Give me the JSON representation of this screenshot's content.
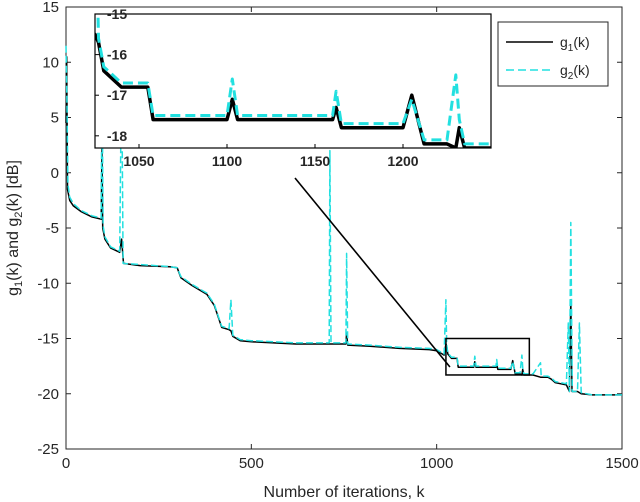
{
  "chart_data": {
    "type": "line",
    "xlabel": "Number of iterations, k",
    "ylabel": {
      "g1": "g",
      "s1": "1",
      "m1": "(k) and g",
      "s2": "2",
      "end": "(k) [dB]"
    },
    "xlim": [
      0,
      1500
    ],
    "ylim": [
      -25,
      15
    ],
    "x_ticks": [
      "0",
      "500",
      "1000",
      "1500"
    ],
    "y_ticks": [
      "15",
      "10",
      "5",
      "0",
      "-5",
      "-10",
      "-15",
      "-20",
      "-25"
    ],
    "legend": {
      "placement": "top-right",
      "entries": [
        {
          "base": "g",
          "sub": "1",
          "end": "(k)",
          "color": "#000000",
          "style": "solid"
        },
        {
          "base": "g",
          "sub": "2",
          "end": "(k)",
          "color": "#22e0e0",
          "style": "dashed"
        }
      ]
    },
    "zoom_box": {
      "x": [
        1025,
        1250
      ],
      "y": [
        -18.3,
        -15
      ]
    },
    "series": [
      {
        "key": "g1",
        "color": "#000000",
        "points": [
          [
            0,
            4.5
          ],
          [
            2,
            10.5
          ],
          [
            4,
            -1.5
          ],
          [
            10,
            -2.5
          ],
          [
            20,
            -3
          ],
          [
            40,
            -3.5
          ],
          [
            70,
            -4
          ],
          [
            95,
            -4.2
          ],
          [
            97,
            2.5
          ],
          [
            99,
            -5
          ],
          [
            105,
            -6
          ],
          [
            120,
            -6.8
          ],
          [
            145,
            -7.2
          ],
          [
            150,
            -6
          ],
          [
            155,
            -8.2
          ],
          [
            200,
            -8.4
          ],
          [
            280,
            -8.5
          ],
          [
            300,
            -8.6
          ],
          [
            310,
            -9.5
          ],
          [
            340,
            -10.2
          ],
          [
            380,
            -11
          ],
          [
            400,
            -12
          ],
          [
            410,
            -13
          ],
          [
            420,
            -14
          ],
          [
            440,
            -14.2
          ],
          [
            445,
            -14.3
          ],
          [
            450,
            -14.8
          ],
          [
            470,
            -15.2
          ],
          [
            500,
            -15.3
          ],
          [
            560,
            -15.4
          ],
          [
            620,
            -15.5
          ],
          [
            710,
            -15.5
          ],
          [
            712,
            -15.5
          ],
          [
            715,
            -15.5
          ],
          [
            755,
            -15.5
          ],
          [
            757,
            -14.5
          ],
          [
            760,
            -15.6
          ],
          [
            820,
            -15.7
          ],
          [
            900,
            -15.9
          ],
          [
            980,
            -16
          ],
          [
            1000,
            -16.1
          ],
          [
            1020,
            -16.5
          ],
          [
            1025,
            -15.5
          ],
          [
            1027,
            -15.7
          ],
          [
            1030,
            -16.4
          ],
          [
            1040,
            -16.8
          ],
          [
            1055,
            -16.8
          ],
          [
            1058,
            -17.6
          ],
          [
            1100,
            -17.6
          ],
          [
            1103,
            -17.1
          ],
          [
            1106,
            -17.6
          ],
          [
            1150,
            -17.6
          ],
          [
            1160,
            -17.6
          ],
          [
            1162,
            -17.3
          ],
          [
            1165,
            -17.8
          ],
          [
            1195,
            -17.8
          ],
          [
            1200,
            -17.8
          ],
          [
            1205,
            -17.0
          ],
          [
            1212,
            -18.2
          ],
          [
            1225,
            -18.2
          ],
          [
            1230,
            -18.3
          ],
          [
            1232,
            -17.8
          ],
          [
            1235,
            -18.3
          ],
          [
            1260,
            -18.3
          ],
          [
            1280,
            -18.5
          ],
          [
            1300,
            -18.5
          ],
          [
            1310,
            -18.7
          ],
          [
            1320,
            -19
          ],
          [
            1350,
            -19.2
          ],
          [
            1358,
            -19.8
          ],
          [
            1362,
            -11.5
          ],
          [
            1365,
            -19.8
          ],
          [
            1370,
            -19.8
          ],
          [
            1380,
            -19.8
          ],
          [
            1390,
            -20
          ],
          [
            1420,
            -20.1
          ],
          [
            1450,
            -20.1
          ],
          [
            1500,
            -20.1
          ]
        ]
      },
      {
        "key": "g2",
        "color": "#22e0e0",
        "points": [
          [
            0,
            11.5
          ],
          [
            3,
            5.5
          ],
          [
            5,
            -1
          ],
          [
            10,
            -2.2
          ],
          [
            20,
            -2.8
          ],
          [
            40,
            -3.4
          ],
          [
            70,
            -3.9
          ],
          [
            95,
            -4.1
          ],
          [
            97,
            9.5
          ],
          [
            100,
            -4.8
          ],
          [
            105,
            -5.8
          ],
          [
            120,
            -6.7
          ],
          [
            145,
            -7.1
          ],
          [
            150,
            10
          ],
          [
            154,
            -8.2
          ],
          [
            200,
            -8.3
          ],
          [
            280,
            -8.5
          ],
          [
            300,
            -8.6
          ],
          [
            310,
            -9.4
          ],
          [
            340,
            -10.1
          ],
          [
            380,
            -10.9
          ],
          [
            400,
            -11.9
          ],
          [
            410,
            -12.9
          ],
          [
            420,
            -13.9
          ],
          [
            440,
            -14.1
          ],
          [
            445,
            -11.5
          ],
          [
            450,
            -14.7
          ],
          [
            470,
            -15.1
          ],
          [
            500,
            -15.2
          ],
          [
            560,
            -15.3
          ],
          [
            620,
            -15.4
          ],
          [
            710,
            -15.4
          ],
          [
            712,
            2.0
          ],
          [
            715,
            -15.4
          ],
          [
            755,
            -15.4
          ],
          [
            757,
            -7.3
          ],
          [
            760,
            -15.5
          ],
          [
            820,
            -15.6
          ],
          [
            900,
            -15.8
          ],
          [
            980,
            -15.9
          ],
          [
            1000,
            -16
          ],
          [
            1020,
            -16.4
          ],
          [
            1025,
            -11.5
          ],
          [
            1027,
            -15.6
          ],
          [
            1030,
            -16.3
          ],
          [
            1040,
            -16.7
          ],
          [
            1055,
            -16.7
          ],
          [
            1058,
            -17.5
          ],
          [
            1100,
            -17.5
          ],
          [
            1103,
            -16.6
          ],
          [
            1106,
            -17.5
          ],
          [
            1150,
            -17.5
          ],
          [
            1160,
            -17.5
          ],
          [
            1162,
            -16.9
          ],
          [
            1165,
            -17.7
          ],
          [
            1195,
            -17.7
          ],
          [
            1200,
            -17.7
          ],
          [
            1205,
            -17.1
          ],
          [
            1212,
            -18.1
          ],
          [
            1225,
            -18.1
          ],
          [
            1230,
            -16.5
          ],
          [
            1232,
            -17.6
          ],
          [
            1235,
            -18.2
          ],
          [
            1260,
            -18.2
          ],
          [
            1280,
            -17.2
          ],
          [
            1282,
            -18.4
          ],
          [
            1300,
            -18.4
          ],
          [
            1310,
            -18.6
          ],
          [
            1320,
            -18.9
          ],
          [
            1350,
            -19.1
          ],
          [
            1355,
            -13.6
          ],
          [
            1358,
            -19.8
          ],
          [
            1362,
            -4.5
          ],
          [
            1366,
            -19.8
          ],
          [
            1370,
            -19.8
          ],
          [
            1380,
            -19.8
          ],
          [
            1385,
            -13.6
          ],
          [
            1390,
            -19.9
          ],
          [
            1420,
            -20.1
          ],
          [
            1450,
            -20.1
          ],
          [
            1500,
            -20.1
          ]
        ]
      }
    ],
    "inset": {
      "xlim": [
        1025,
        1250
      ],
      "ylim": [
        -18.3,
        -15
      ],
      "x_ticks": [
        "1050",
        "1100",
        "1150",
        "1200"
      ],
      "y_ticks": [
        "-15",
        "-16",
        "-17",
        "-18"
      ]
    }
  }
}
